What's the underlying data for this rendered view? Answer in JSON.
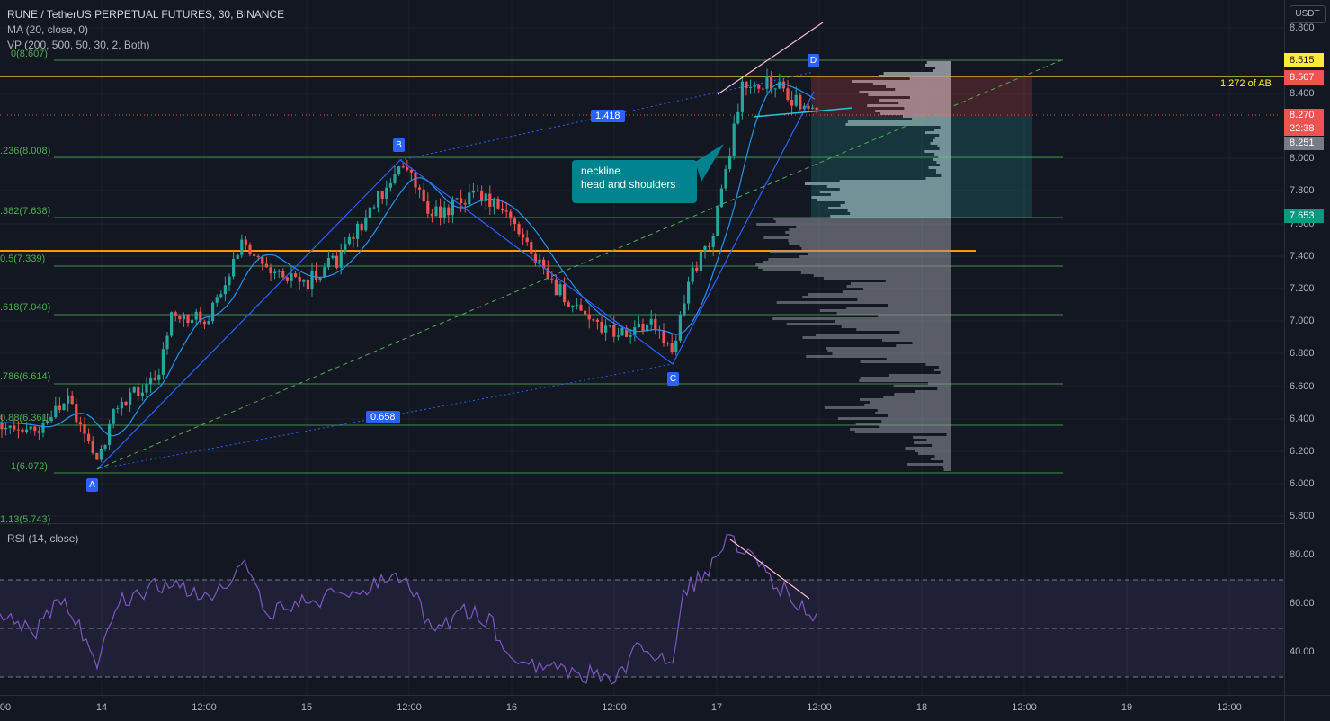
{
  "header": {
    "title": "RUNE / TetherUS PERPETUAL FUTURES, 30, BINANCE",
    "indicator_ma": "MA (20, close, 0)",
    "indicator_vp": "VP (200, 500, 50, 30, 2, Both)",
    "indicator_rsi": "RSI (14, close)"
  },
  "axis": {
    "currency": "USDT",
    "price_ticks": [
      "8.800",
      "8.400",
      "8.000",
      "7.800",
      "7.600",
      "7.400",
      "7.200",
      "7.000",
      "6.800",
      "6.600",
      "6.400",
      "6.200",
      "6.000",
      "5.800"
    ],
    "rsi_ticks": [
      "80.00",
      "60.00",
      "40.00"
    ],
    "time_ticks": [
      "00",
      "14",
      "12:00",
      "15",
      "12:00",
      "16",
      "12:00",
      "17",
      "12:00",
      "18",
      "12:00",
      "19",
      "12:00"
    ]
  },
  "price_labels": {
    "fib_top": "8.515",
    "ab_level": "8.507",
    "current": "8.270",
    "countdown": "22:38",
    "ma_value": "8.251",
    "target": "7.653"
  },
  "fib_levels": [
    "0(8.607)",
    ".236(8.008)",
    ".382(7.638)",
    "0.5(7.339)",
    ".618(7.040)",
    ".786(6.614)",
    "0.88(6.361)",
    "1(6.072)",
    "1.13(5.743)"
  ],
  "pattern": {
    "points": [
      "A",
      "B",
      "C",
      "D"
    ],
    "ratio_bc": "1.418",
    "ratio_ab": "0.658",
    "ab_extension": "1.272 of AB"
  },
  "callout": {
    "line1": "neckline",
    "line2": "head and shoulders"
  },
  "colors": {
    "background": "#131722",
    "up": "#26a69a",
    "down": "#ef5350",
    "ma": "#2196f3",
    "fib": "#4caf50",
    "rsi": "#7e57c2",
    "yellow": "#ffeb3b",
    "orange": "#ff9800"
  }
}
